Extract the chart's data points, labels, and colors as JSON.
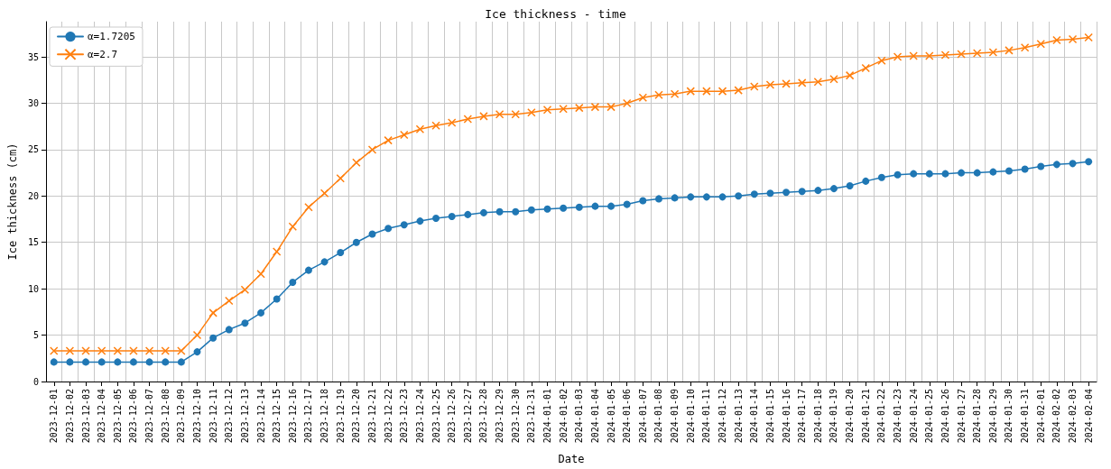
{
  "chart_data": {
    "type": "line",
    "title": "Ice thickness - time",
    "xlabel": "Date",
    "ylabel": "Ice thickness (cm)",
    "categories": [
      "2023-12-01",
      "2023-12-02",
      "2023-12-03",
      "2023-12-04",
      "2023-12-05",
      "2023-12-06",
      "2023-12-07",
      "2023-12-08",
      "2023-12-09",
      "2023-12-10",
      "2023-12-11",
      "2023-12-12",
      "2023-12-13",
      "2023-12-14",
      "2023-12-15",
      "2023-12-16",
      "2023-12-17",
      "2023-12-18",
      "2023-12-19",
      "2023-12-20",
      "2023-12-21",
      "2023-12-22",
      "2023-12-23",
      "2023-12-24",
      "2023-12-25",
      "2023-12-26",
      "2023-12-27",
      "2023-12-28",
      "2023-12-29",
      "2023-12-30",
      "2023-12-31",
      "2024-01-01",
      "2024-01-02",
      "2024-01-03",
      "2024-01-04",
      "2024-01-05",
      "2024-01-06",
      "2024-01-07",
      "2024-01-08",
      "2024-01-09",
      "2024-01-10",
      "2024-01-11",
      "2024-01-12",
      "2024-01-13",
      "2024-01-14",
      "2024-01-15",
      "2024-01-16",
      "2024-01-17",
      "2024-01-18",
      "2024-01-19",
      "2024-01-20",
      "2024-01-21",
      "2024-01-22",
      "2024-01-23",
      "2024-01-24",
      "2024-01-25",
      "2024-01-26",
      "2024-01-27",
      "2024-01-28",
      "2024-01-29",
      "2024-01-30",
      "2024-01-31",
      "2024-02-01",
      "2024-02-02",
      "2024-02-03",
      "2024-02-04"
    ],
    "series": [
      {
        "name": "α=1.7205",
        "color": "#1f77b4",
        "marker": "circle",
        "values": [
          2.1,
          2.1,
          2.1,
          2.1,
          2.1,
          2.1,
          2.1,
          2.1,
          2.1,
          3.2,
          4.7,
          5.6,
          6.3,
          7.4,
          8.9,
          10.7,
          12.0,
          12.9,
          13.9,
          15.0,
          15.9,
          16.5,
          16.9,
          17.3,
          17.6,
          17.8,
          18.0,
          18.2,
          18.3,
          18.3,
          18.5,
          18.6,
          18.7,
          18.8,
          18.9,
          18.9,
          19.1,
          19.5,
          19.7,
          19.8,
          19.9,
          19.9,
          19.9,
          20.0,
          20.2,
          20.3,
          20.4,
          20.5,
          20.6,
          20.8,
          21.1,
          21.6,
          22.0,
          22.3,
          22.4,
          22.4,
          22.4,
          22.5,
          22.5,
          22.6,
          22.7,
          22.9,
          23.2,
          23.4,
          23.5,
          23.7
        ]
      },
      {
        "name": "α=2.7",
        "color": "#ff7f0e",
        "marker": "cross",
        "values": [
          3.3,
          3.3,
          3.3,
          3.3,
          3.3,
          3.3,
          3.3,
          3.3,
          3.3,
          5.0,
          7.4,
          8.7,
          9.9,
          11.6,
          14.0,
          16.7,
          18.8,
          20.3,
          21.9,
          23.6,
          25.0,
          26.0,
          26.6,
          27.2,
          27.6,
          27.9,
          28.3,
          28.6,
          28.8,
          28.8,
          29.0,
          29.3,
          29.4,
          29.5,
          29.6,
          29.6,
          30.0,
          30.6,
          30.9,
          31.0,
          31.3,
          31.3,
          31.3,
          31.4,
          31.8,
          32.0,
          32.1,
          32.2,
          32.3,
          32.6,
          33.0,
          33.8,
          34.6,
          35.0,
          35.1,
          35.1,
          35.2,
          35.3,
          35.4,
          35.5,
          35.7,
          36.0,
          36.4,
          36.8,
          36.9,
          37.1
        ]
      }
    ],
    "ylim": [
      0,
      38.8
    ],
    "yticks": [
      0,
      5,
      10,
      15,
      20,
      25,
      30,
      35
    ],
    "grid": true,
    "legend": "top left",
    "line_style": "solid"
  }
}
